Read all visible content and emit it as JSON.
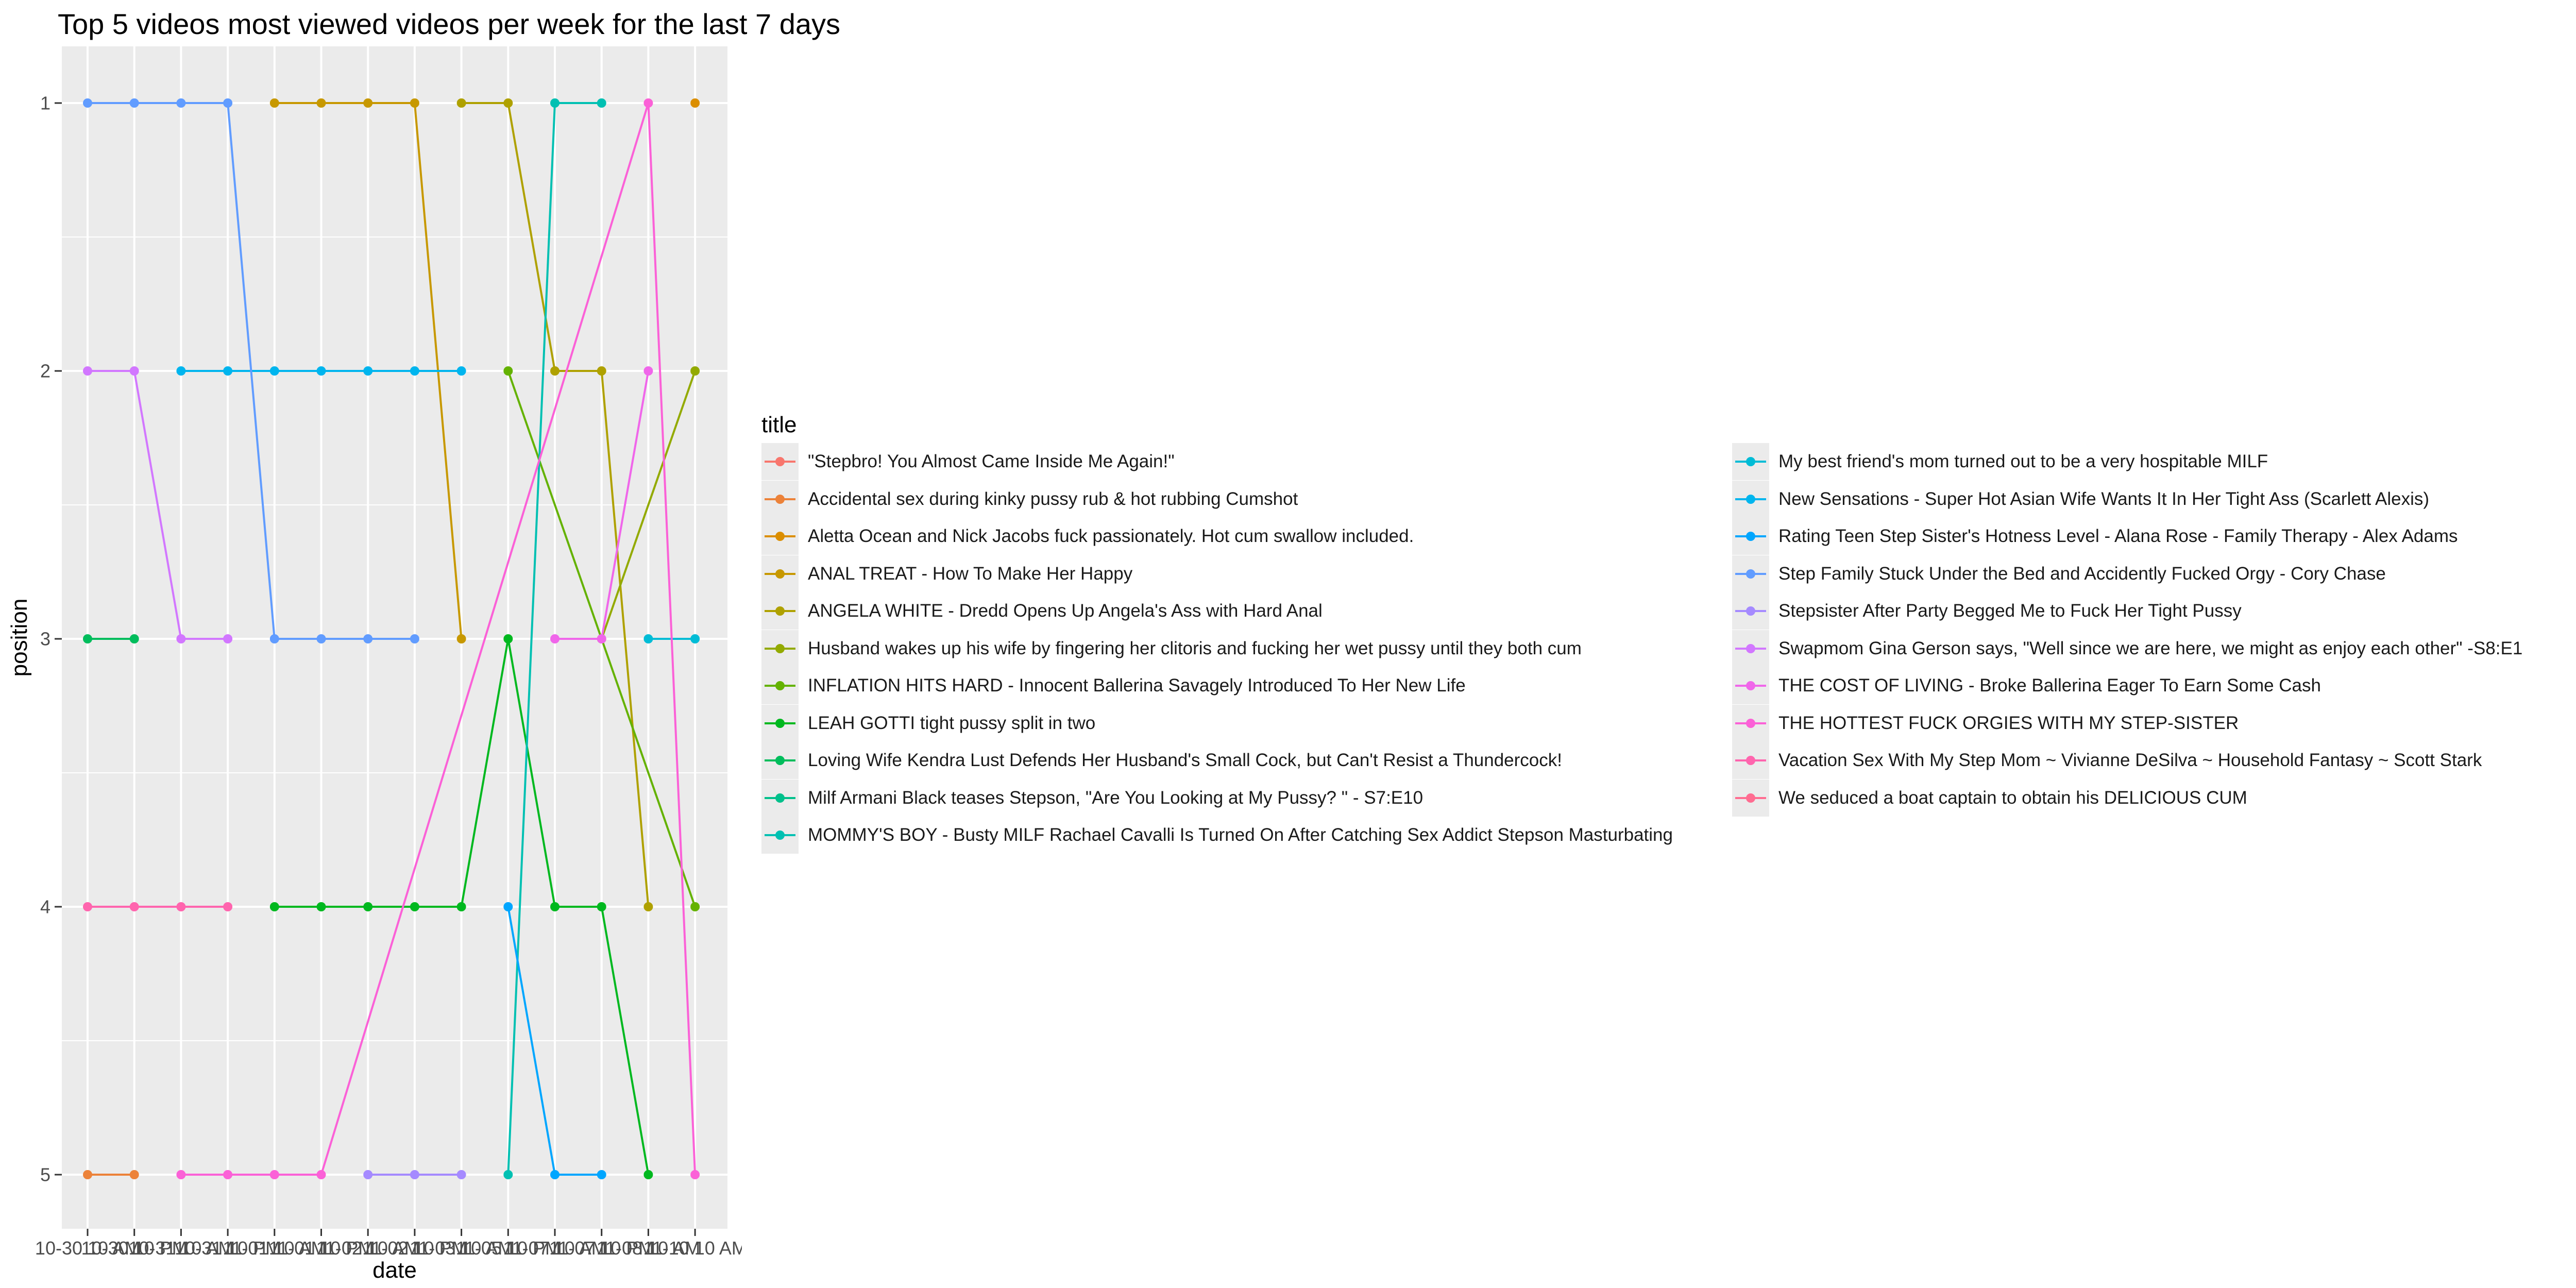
{
  "chart_data": {
    "type": "line",
    "title": "Top 5 videos most viewed videos per week for the last 7 days",
    "xlabel": "date",
    "ylabel": "position",
    "legend_title": "title",
    "legend_position": "right",
    "grid": true,
    "y_reversed": true,
    "ylim": [
      1,
      5
    ],
    "yticks": [
      "1",
      "2",
      "3",
      "4",
      "5"
    ],
    "x_tick_labels": [
      "10-30 10 AM",
      "10-30 10 PM",
      "10-31 10 AM",
      "10-31 10 PM",
      "11-01 10 AM",
      "11-01 10 PM",
      "11-02 10 AM",
      "11-02 10 PM",
      "11-03 10 AM",
      "11-05 10 PM",
      "11-07 10 AM",
      "11-07 10 PM",
      "11-08 10 AM",
      "11-10 10 AM"
    ],
    "series": [
      {
        "name": "\"Stepbro! You Almost Came Inside Me Again!\"",
        "color": "#F8766D",
        "points": []
      },
      {
        "name": "Accidental sex during kinky pussy rub & hot rubbing Cumshot",
        "color": "#EC8239",
        "points": [
          [
            0,
            5
          ],
          [
            1,
            5
          ]
        ]
      },
      {
        "name": "Aletta Ocean and Nick Jacobs fuck passionately. Hot cum swallow included.",
        "color": "#DB8E00",
        "points": [
          [
            13,
            1
          ]
        ]
      },
      {
        "name": "ANAL TREAT - How To Make Her Happy",
        "color": "#C79800",
        "points": [
          [
            4,
            1
          ],
          [
            5,
            1
          ],
          [
            6,
            1
          ],
          [
            7,
            1
          ],
          [
            8,
            3
          ]
        ]
      },
      {
        "name": "ANGELA WHITE - Dredd Opens Up Angela's Ass with Hard Anal",
        "color": "#AFA100",
        "points": [
          [
            8,
            1
          ],
          [
            9,
            1
          ],
          [
            10,
            2
          ],
          [
            11,
            2
          ],
          [
            12,
            4
          ]
        ]
      },
      {
        "name": "Husband wakes up his wife by fingering her clitoris and fucking her wet pussy until they both cum",
        "color": "#93AA00",
        "points": [
          [
            11,
            3
          ],
          [
            13,
            2
          ]
        ]
      },
      {
        "name": "INFLATION HITS HARD - Innocent Ballerina Savagely Introduced To Her New Life",
        "color": "#64B200",
        "points": [
          [
            9,
            2
          ],
          [
            13,
            4
          ]
        ]
      },
      {
        "name": "LEAH GOTTI tight pussy split in two",
        "color": "#00B81F",
        "points": [
          [
            4,
            4
          ],
          [
            5,
            4
          ],
          [
            6,
            4
          ],
          [
            7,
            4
          ],
          [
            8,
            4
          ],
          [
            9,
            3
          ],
          [
            10,
            4
          ],
          [
            11,
            4
          ],
          [
            12,
            5
          ]
        ]
      },
      {
        "name": "Loving Wife Kendra Lust Defends Her Husband's Small Cock, but Can't Resist a Thundercock!",
        "color": "#00BD5C",
        "points": [
          [
            0,
            3
          ],
          [
            1,
            3
          ]
        ]
      },
      {
        "name": "Milf Armani Black teases Stepson, \"Are You Looking at My Pussy? \" - S7:E10",
        "color": "#00C08B",
        "points": []
      },
      {
        "name": "MOMMY'S BOY - Busty MILF Rachael Cavalli Is Turned On After Catching Sex Addict Stepson Masturbating",
        "color": "#00C0B2",
        "points": [
          [
            9,
            5
          ],
          [
            10,
            1
          ],
          [
            11,
            1
          ]
        ]
      },
      {
        "name": "My best friend's mom turned out to be a very hospitable MILF",
        "color": "#00BCD6",
        "points": [
          [
            12,
            3
          ],
          [
            13,
            3
          ]
        ]
      },
      {
        "name": "New Sensations - Super Hot Asian Wife Wants It In Her Tight Ass (Scarlett Alexis)",
        "color": "#00B5EE",
        "points": [
          [
            2,
            2
          ],
          [
            3,
            2
          ],
          [
            4,
            2
          ],
          [
            5,
            2
          ],
          [
            6,
            2
          ],
          [
            7,
            2
          ],
          [
            8,
            2
          ]
        ]
      },
      {
        "name": "Rating Teen Step Sister's Hotness Level - Alana Rose - Family Therapy - Alex Adams",
        "color": "#00A6FF",
        "points": [
          [
            9,
            4
          ],
          [
            10,
            5
          ],
          [
            11,
            5
          ]
        ]
      },
      {
        "name": "Step Family Stuck Under the Bed and Accidently Fucked Orgy - Cory Chase",
        "color": "#619CFF",
        "points": [
          [
            0,
            1
          ],
          [
            1,
            1
          ],
          [
            2,
            1
          ],
          [
            3,
            1
          ],
          [
            4,
            3
          ],
          [
            5,
            3
          ],
          [
            6,
            3
          ],
          [
            7,
            3
          ]
        ]
      },
      {
        "name": "Stepsister After Party Begged Me to Fuck Her Tight Pussy",
        "color": "#A58AFF",
        "points": [
          [
            6,
            5
          ],
          [
            7,
            5
          ],
          [
            8,
            5
          ]
        ]
      },
      {
        "name": "Swapmom Gina Gerson says, \"Well since we are here, we might as enjoy each other\" -S8:E1",
        "color": "#D277FF",
        "points": [
          [
            0,
            2
          ],
          [
            1,
            2
          ],
          [
            2,
            3
          ],
          [
            3,
            3
          ]
        ]
      },
      {
        "name": "THE COST OF LIVING - Broke Ballerina Eager To Earn Some Cash",
        "color": "#F066EA",
        "points": [
          [
            10,
            3
          ],
          [
            11,
            3
          ],
          [
            12,
            2
          ]
        ]
      },
      {
        "name": "THE HOTTEST FUCK ORGIES WITH MY STEP-SISTER",
        "color": "#FB61D7",
        "points": [
          [
            2,
            5
          ],
          [
            3,
            5
          ],
          [
            4,
            5
          ],
          [
            5,
            5
          ],
          [
            12,
            1
          ],
          [
            13,
            5
          ]
        ]
      },
      {
        "name": "Vacation Sex With My Step Mom ~ Vivianne DeSilva ~ Household Fantasy ~ Scott Stark",
        "color": "#FF65AE",
        "points": [
          [
            0,
            4
          ],
          [
            1,
            4
          ],
          [
            2,
            4
          ],
          [
            3,
            4
          ]
        ]
      },
      {
        "name": "We seduced a boat captain to obtain his DELICIOUS CUM",
        "color": "#FF6C91",
        "points": []
      }
    ]
  }
}
